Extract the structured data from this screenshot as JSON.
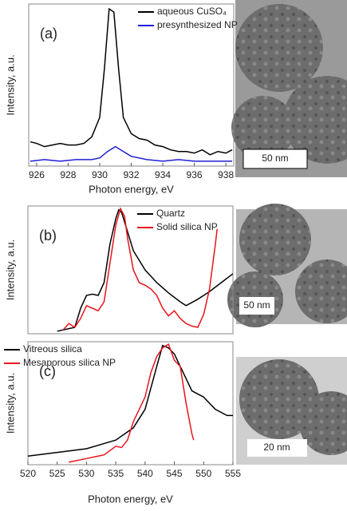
{
  "chart_data": [
    {
      "type": "line",
      "panel_label": "(a)",
      "x_label": "Photon energy, eV",
      "y_label": "Intensity, a.u.",
      "xlim": [
        925.5,
        938.5
      ],
      "xticks": [
        926,
        928,
        930,
        932,
        934,
        936,
        938
      ],
      "ylim": [
        0,
        100
      ],
      "legend": "upper right",
      "series": [
        {
          "name": "aqueous CuSO₄",
          "color": "#000000",
          "x": [
            925.6,
            926,
            926.5,
            927,
            927.5,
            928,
            928.5,
            929,
            929.5,
            930,
            930.3,
            930.6,
            930.9,
            931.2,
            931.5,
            932,
            932.5,
            933,
            933.5,
            934,
            934.5,
            935,
            935.5,
            936,
            936.5,
            937,
            937.5,
            938,
            938.4
          ],
          "values": [
            15,
            14,
            12,
            13,
            14,
            13,
            13,
            14,
            18,
            30,
            60,
            97,
            95,
            60,
            30,
            20,
            17,
            16,
            13,
            12,
            10,
            9,
            9,
            8,
            10,
            7,
            9,
            8,
            10
          ]
        },
        {
          "name": "presynthesized NP",
          "color": "#1f1fd6",
          "x": [
            925.6,
            926.5,
            927.5,
            928.5,
            929.5,
            930,
            930.5,
            931,
            931.5,
            932,
            933,
            934,
            935,
            936,
            937,
            938,
            938.4
          ],
          "values": [
            3,
            4,
            3,
            4,
            4,
            5,
            9,
            12,
            9,
            6,
            4,
            3,
            4,
            3,
            3,
            3,
            3
          ]
        }
      ]
    },
    {
      "type": "line",
      "panel_label": "(b)",
      "y_label": "Intensity, a.u.",
      "xlim": [
        520,
        555
      ],
      "ylim": [
        0,
        100
      ],
      "legend": "upper right",
      "series": [
        {
          "name": "Quartz",
          "color": "#000000",
          "x": [
            525,
            528,
            529,
            530,
            531,
            532,
            533,
            534,
            535,
            535.5,
            536,
            537,
            538,
            540,
            542,
            544,
            546,
            547,
            549,
            551,
            553,
            555
          ],
          "values": [
            2,
            5,
            20,
            30,
            31,
            30,
            40,
            70,
            90,
            97,
            95,
            80,
            65,
            50,
            40,
            32,
            25,
            22,
            27,
            33,
            40,
            47
          ]
        },
        {
          "name": "Solid silica NP",
          "color": "#e8141c",
          "x": [
            526,
            527,
            528,
            529,
            530,
            531,
            532,
            533,
            534,
            535,
            535.8,
            536.5,
            537,
            538,
            539,
            540,
            541,
            542,
            543,
            544,
            545,
            546,
            547,
            548,
            549,
            550,
            551,
            552,
            552.3
          ],
          "values": [
            3,
            8,
            5,
            12,
            22,
            20,
            18,
            25,
            55,
            85,
            98,
            92,
            75,
            50,
            40,
            38,
            35,
            30,
            20,
            14,
            18,
            12,
            8,
            6,
            5,
            15,
            35,
            70,
            82
          ]
        }
      ]
    },
    {
      "type": "line",
      "panel_label": "(c)",
      "x_label": "Photon energy, eV",
      "y_label": "Intensity, a.u.",
      "xlim": [
        520,
        555
      ],
      "xticks": [
        520,
        525,
        530,
        535,
        540,
        545,
        550,
        555
      ],
      "ylim": [
        0,
        100
      ],
      "legend": "upper left",
      "series": [
        {
          "name": "Vitreous silica",
          "color": "#000000",
          "x": [
            520,
            525,
            530,
            535,
            538,
            540,
            542,
            543,
            544,
            545,
            546,
            547,
            548,
            550,
            552,
            554,
            555
          ],
          "values": [
            7,
            10,
            13,
            20,
            30,
            45,
            80,
            97,
            95,
            90,
            80,
            70,
            60,
            55,
            45,
            40,
            40
          ]
        },
        {
          "name": "Mesaporous silica NP",
          "color": "#e8141c",
          "x": [
            527,
            530,
            533,
            535,
            536,
            537,
            538,
            540,
            541,
            542,
            543,
            544,
            545,
            546,
            547,
            548,
            548.3
          ],
          "values": [
            2,
            5,
            8,
            15,
            14,
            20,
            35,
            55,
            75,
            88,
            95,
            98,
            85,
            80,
            50,
            25,
            20
          ]
        }
      ]
    }
  ],
  "images": [
    {
      "scale_bar": "50 nm"
    },
    {
      "scale_bar": "50 nm"
    },
    {
      "scale_bar": "20 nm"
    }
  ]
}
